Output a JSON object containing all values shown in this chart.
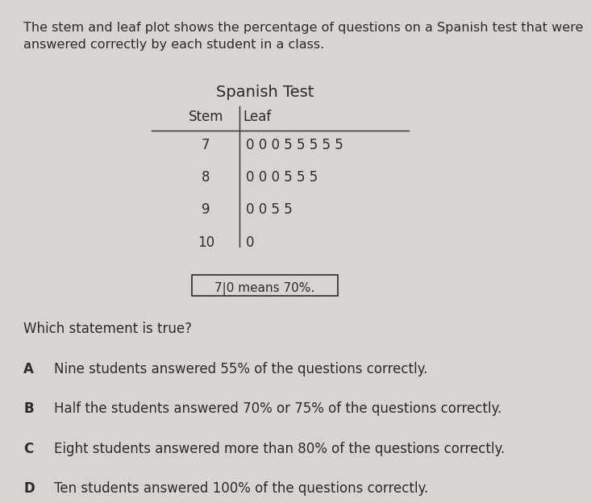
{
  "title_text": "The stem and leaf plot shows the percentage of questions on a Spanish test that were\nanswered correctly by each student in a class.",
  "table_title": "Spanish Test",
  "stem_header": "Stem",
  "leaf_header": "Leaf",
  "stems": [
    "7",
    "8",
    "9",
    "10"
  ],
  "leaves": [
    "0 0 0 5 5 5 5 5",
    "0 0 0 5 5 5",
    "0 0 5 5",
    "0"
  ],
  "key_text": "7|0 means 70%.",
  "question": "Which statement is true?",
  "options": [
    [
      "A",
      "Nine students answered 55% of the questions correctly."
    ],
    [
      "B",
      "Half the students answered 70% or 75% of the questions correctly."
    ],
    [
      "C",
      "Eight students answered more than 80% of the questions correctly."
    ],
    [
      "D",
      "Ten students answered 100% of the questions correctly."
    ]
  ],
  "bg_color": "#d8d4d0",
  "text_color": "#2b2b2b",
  "title_fontsize": 11.5,
  "table_title_fontsize": 14,
  "header_fontsize": 12,
  "data_fontsize": 12,
  "key_fontsize": 11,
  "question_fontsize": 12,
  "option_fontsize": 12
}
